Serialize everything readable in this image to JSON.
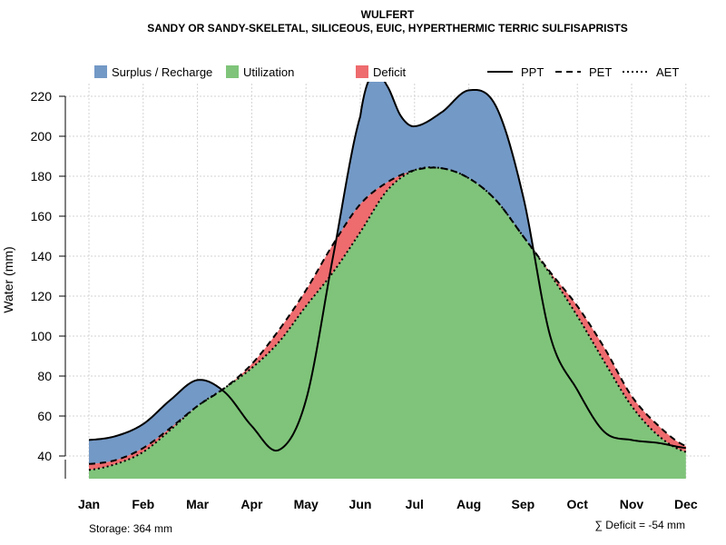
{
  "chart_data": {
    "type": "area",
    "title": "WULFERT",
    "subtitle": "SANDY OR SANDY-SKELETAL, SILICEOUS, EUIC, HYPERTHERMIC TERRIC SULFISAPRISTS",
    "ylabel": "Water (mm)",
    "xlabel": "",
    "categories": [
      "Jan",
      "Feb",
      "Mar",
      "Apr",
      "May",
      "Jun",
      "Jul",
      "Aug",
      "Sep",
      "Oct",
      "Nov",
      "Dec"
    ],
    "ylim": [
      29,
      230
    ],
    "yticks": [
      40,
      60,
      80,
      100,
      120,
      140,
      160,
      180,
      200,
      220
    ],
    "grid": true,
    "series": [
      {
        "name": "PPT",
        "line": "solid",
        "x": [
          1,
          1.5,
          2,
          2.5,
          3,
          3.5,
          4,
          4.5,
          5,
          5.5,
          6,
          6.25,
          6.5,
          6.75,
          7,
          7.5,
          8,
          8.5,
          9,
          9.5,
          10,
          10.5,
          11,
          11.5,
          12
        ],
        "values": [
          48,
          50,
          56,
          68,
          78,
          72,
          55,
          43,
          68,
          140,
          210,
          232,
          225,
          210,
          205,
          212,
          223,
          215,
          170,
          100,
          73,
          52,
          48,
          46.5,
          44
        ]
      },
      {
        "name": "PET",
        "line": "dashed",
        "x": [
          1,
          1.5,
          2,
          2.5,
          3,
          3.5,
          4,
          4.5,
          5,
          5.5,
          6,
          6.5,
          7,
          7.5,
          8,
          8.5,
          9,
          9.5,
          10,
          10.5,
          11,
          11.5,
          12
        ],
        "values": [
          36,
          38,
          44,
          54,
          65,
          74,
          86,
          103,
          123,
          146,
          166,
          177,
          183,
          184,
          179,
          168,
          150,
          132,
          115,
          94,
          70,
          55,
          45
        ]
      },
      {
        "name": "AET",
        "line": "dotted",
        "x": [
          1,
          1.5,
          2,
          2.5,
          3,
          3.5,
          4,
          4.5,
          5,
          5.5,
          6,
          6.5,
          7,
          7.5,
          8,
          8.5,
          9,
          9.5,
          10,
          10.5,
          11,
          11.5,
          12
        ],
        "values": [
          33,
          36,
          42,
          53,
          65,
          74,
          84,
          97,
          115,
          132,
          152,
          173,
          183,
          184,
          179,
          168,
          150,
          131,
          110,
          87,
          65,
          50,
          42
        ]
      }
    ],
    "areas": [
      {
        "name": "Surplus / Recharge",
        "color": "#7399c6"
      },
      {
        "name": "Utilization",
        "color": "#7fc47a"
      },
      {
        "name": "Deficit",
        "color": "#ee6b6e"
      }
    ],
    "legend_position": "top"
  },
  "notes": {
    "storage": "Storage: 364 mm",
    "deficit": "∑ Deficit = -54 mm"
  },
  "colors": {
    "surplus": "#7399c6",
    "utilization": "#7fc47a",
    "deficit": "#ee6b6e",
    "grid": "#d3d3d3"
  }
}
